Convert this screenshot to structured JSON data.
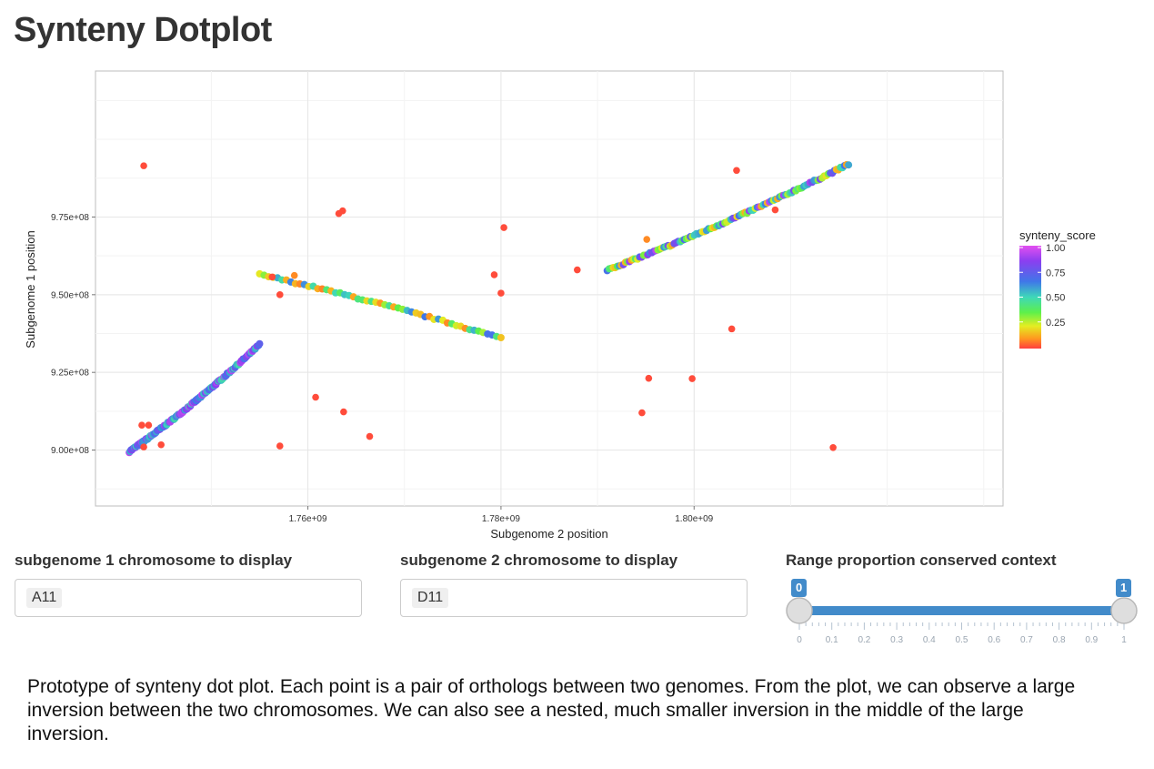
{
  "page": {
    "title": "Synteny Dotplot"
  },
  "chart_data": {
    "type": "scatter",
    "xlabel": "Subgenome 2 position",
    "ylabel": "Subgenome 1 position",
    "xlim": [
      1738000000,
      1832000000
    ],
    "ylim": [
      882000000,
      1022000000
    ],
    "x_ticks": [
      1760000000,
      1780000000,
      1800000000
    ],
    "x_tick_labels": [
      "1.76e+09",
      "1.78e+09",
      "1.80e+09"
    ],
    "y_ticks": [
      900000000,
      925000000,
      950000000,
      975000000
    ],
    "y_tick_labels": [
      "9.00e+08",
      "9.25e+08",
      "9.50e+08",
      "9.75e+08"
    ],
    "grid": true,
    "legend": {
      "title": "synteny_score",
      "position": "right",
      "ticks": [
        1.0,
        0.75,
        0.5,
        0.25
      ],
      "tick_labels": [
        "1.00",
        "0.75",
        "0.50",
        "0.25"
      ]
    },
    "color_scale": [
      "#ff3f3f",
      "#ff9a1f",
      "#e3ee22",
      "#5ef04a",
      "#3ed8b8",
      "#3f78e8",
      "#8a3ff0",
      "#e34ff0"
    ],
    "segments": [
      {
        "name": "",
        "x_start": 1741500000,
        "y_start": 899500000,
        "x_end": 1755000000,
        "y_end": 934000000,
        "count": 150,
        "score_range": [
          0.55,
          0.95
        ]
      },
      {
        "name": "",
        "x_start": 1755000000,
        "y_start": 956500000,
        "x_end": 1780000000,
        "y_end": 936000000,
        "count": 55,
        "score_range": [
          0.1,
          0.75
        ]
      },
      {
        "name": "",
        "x_start": 1791000000,
        "y_start": 958000000,
        "x_end": 1816000000,
        "y_end": 992000000,
        "count": 120,
        "score_range": [
          0.15,
          0.95
        ]
      }
    ],
    "outliers": [
      {
        "x": 1743000000,
        "y": 991500000,
        "score": 0.02
      },
      {
        "x": 1742800000,
        "y": 908000000,
        "score": 0.02
      },
      {
        "x": 1743500000,
        "y": 908000000,
        "score": 0.02
      },
      {
        "x": 1743000000,
        "y": 901000000,
        "score": 0.02
      },
      {
        "x": 1744800000,
        "y": 901700000,
        "score": 0.02
      },
      {
        "x": 1756300000,
        "y": 955700000,
        "score": 0.02
      },
      {
        "x": 1757100000,
        "y": 950000000,
        "score": 0.02
      },
      {
        "x": 1758600000,
        "y": 956200000,
        "score": 0.12
      },
      {
        "x": 1757100000,
        "y": 901300000,
        "score": 0.02
      },
      {
        "x": 1760800000,
        "y": 917000000,
        "score": 0.02
      },
      {
        "x": 1763200000,
        "y": 976100000,
        "score": 0.02
      },
      {
        "x": 1763600000,
        "y": 977000000,
        "score": 0.02
      },
      {
        "x": 1763700000,
        "y": 912300000,
        "score": 0.02
      },
      {
        "x": 1766400000,
        "y": 904400000,
        "score": 0.02
      },
      {
        "x": 1779300000,
        "y": 956400000,
        "score": 0.02
      },
      {
        "x": 1780000000,
        "y": 950500000,
        "score": 0.02
      },
      {
        "x": 1780300000,
        "y": 971600000,
        "score": 0.02
      },
      {
        "x": 1787900000,
        "y": 958000000,
        "score": 0.02
      },
      {
        "x": 1795100000,
        "y": 967800000,
        "score": 0.12
      },
      {
        "x": 1794600000,
        "y": 912000000,
        "score": 0.02
      },
      {
        "x": 1795300000,
        "y": 923100000,
        "score": 0.02
      },
      {
        "x": 1799800000,
        "y": 923000000,
        "score": 0.02
      },
      {
        "x": 1803900000,
        "y": 939000000,
        "score": 0.02
      },
      {
        "x": 1804400000,
        "y": 990000000,
        "score": 0.02
      },
      {
        "x": 1808400000,
        "y": 977300000,
        "score": 0.02
      },
      {
        "x": 1814400000,
        "y": 900800000,
        "score": 0.02
      }
    ]
  },
  "controls": {
    "sub1_label": "subgenome 1 chromosome to display",
    "sub1_value": "A11",
    "sub2_label": "subgenome 2 chromosome to display",
    "sub2_value": "D11",
    "range_label": "Range proportion conserved context",
    "range_min": "0",
    "range_max": "1",
    "range_low_value": 0,
    "range_high_value": 1,
    "range_ticks": [
      "0",
      "0.1",
      "0.2",
      "0.3",
      "0.4",
      "0.5",
      "0.6",
      "0.7",
      "0.8",
      "0.9",
      "1"
    ]
  },
  "caption": "Prototype of synteny dot plot. Each point is a pair of orthologs between two genomes. From the plot, we can observe a large inversion between the two chromosomes. We can also see a nested, much smaller inversion in the middle of the large inversion."
}
